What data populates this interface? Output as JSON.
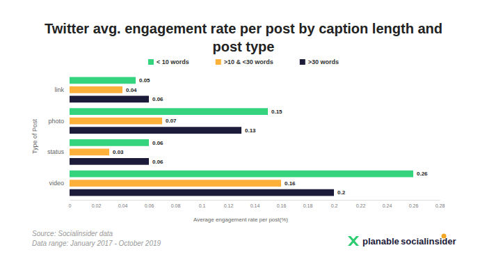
{
  "chart_data": {
    "type": "bar",
    "orientation": "horizontal",
    "title": "Twitter avg. engagement rate per post by caption length and post type",
    "x_label": "Average engagement rate per post(%)",
    "y_label": "Type of Post",
    "categories": [
      "link",
      "photo",
      "status",
      "video"
    ],
    "series": [
      {
        "name": "< 10 words",
        "color": "#34d47f",
        "values": [
          0.05,
          0.15,
          0.06,
          0.26
        ]
      },
      {
        "name": ">10 & <30 words",
        "color": "#fdb13b",
        "values": [
          0.04,
          0.07,
          0.03,
          0.16
        ]
      },
      {
        "name": ">30 words",
        "color": "#1d1b3a",
        "values": [
          0.06,
          0.13,
          0.06,
          0.2
        ]
      }
    ],
    "xlim": [
      0,
      0.28
    ],
    "xticks": [
      0,
      0.02,
      0.04,
      0.06,
      0.08,
      0.1,
      0.12,
      0.14,
      0.16,
      0.18,
      0.2,
      0.22,
      0.24,
      0.26,
      0.28
    ],
    "grid": false,
    "legend": "top",
    "data_labels": true,
    "annotations": [
      "Source: Socialinsider data",
      "Data range: January 2017 - October 2019",
      "planable",
      "socialinsider"
    ]
  }
}
